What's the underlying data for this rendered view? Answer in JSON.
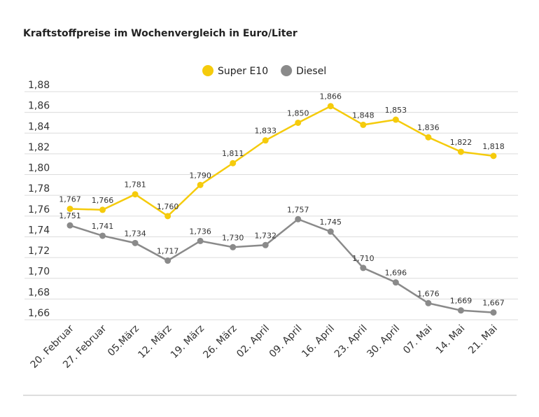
{
  "chart_data": {
    "type": "line",
    "title": "Kraftstoffpreise im Wochenvergleich in Euro/Liter",
    "categories": [
      "20. Februar",
      "27. Februar",
      "05.März",
      "12. März",
      "19. März",
      "26. März",
      "02. April",
      "09. April",
      "16. April",
      "23. April",
      "30. April",
      "07. Mai",
      "14. Mai",
      "21. Mai"
    ],
    "series": [
      {
        "name": "Super E10",
        "color": "#f5cb0c",
        "values": [
          1.767,
          1.766,
          1.781,
          1.76,
          1.79,
          1.811,
          1.833,
          1.85,
          1.866,
          1.848,
          1.853,
          1.836,
          1.822,
          1.818
        ],
        "value_labels": [
          "1,767",
          "1,766",
          "1,781",
          "1,760",
          "1,790",
          "1,811",
          "1,833",
          "1,850",
          "1,866",
          "1,848",
          "1,853",
          "1,836",
          "1,822",
          "1,818"
        ]
      },
      {
        "name": "Diesel",
        "color": "#8a8a8a",
        "values": [
          1.751,
          1.741,
          1.734,
          1.717,
          1.736,
          1.73,
          1.732,
          1.757,
          1.745,
          1.71,
          1.696,
          1.676,
          1.669,
          1.667
        ],
        "value_labels": [
          "1,751",
          "1,741",
          "1,734",
          "1,717",
          "1,736",
          "1,730",
          "1,732",
          "1,757",
          "1,745",
          "1,710",
          "1,696",
          "1,676",
          "1,669",
          "1,667"
        ]
      }
    ],
    "ylim": [
      1.66,
      1.88
    ],
    "yticks": [
      {
        "value": 1.66,
        "label": "1,66"
      },
      {
        "value": 1.68,
        "label": "1,68"
      },
      {
        "value": 1.7,
        "label": "1,70"
      },
      {
        "value": 1.72,
        "label": "1,72"
      },
      {
        "value": 1.74,
        "label": "1,74"
      },
      {
        "value": 1.76,
        "label": "1,76"
      },
      {
        "value": 1.78,
        "label": "1,78"
      },
      {
        "value": 1.8,
        "label": "1,80"
      },
      {
        "value": 1.82,
        "label": "1,82"
      },
      {
        "value": 1.84,
        "label": "1,84"
      },
      {
        "value": 1.86,
        "label": "1,86"
      },
      {
        "value": 1.88,
        "label": "1,88"
      }
    ],
    "grid": true,
    "legend": "top"
  }
}
